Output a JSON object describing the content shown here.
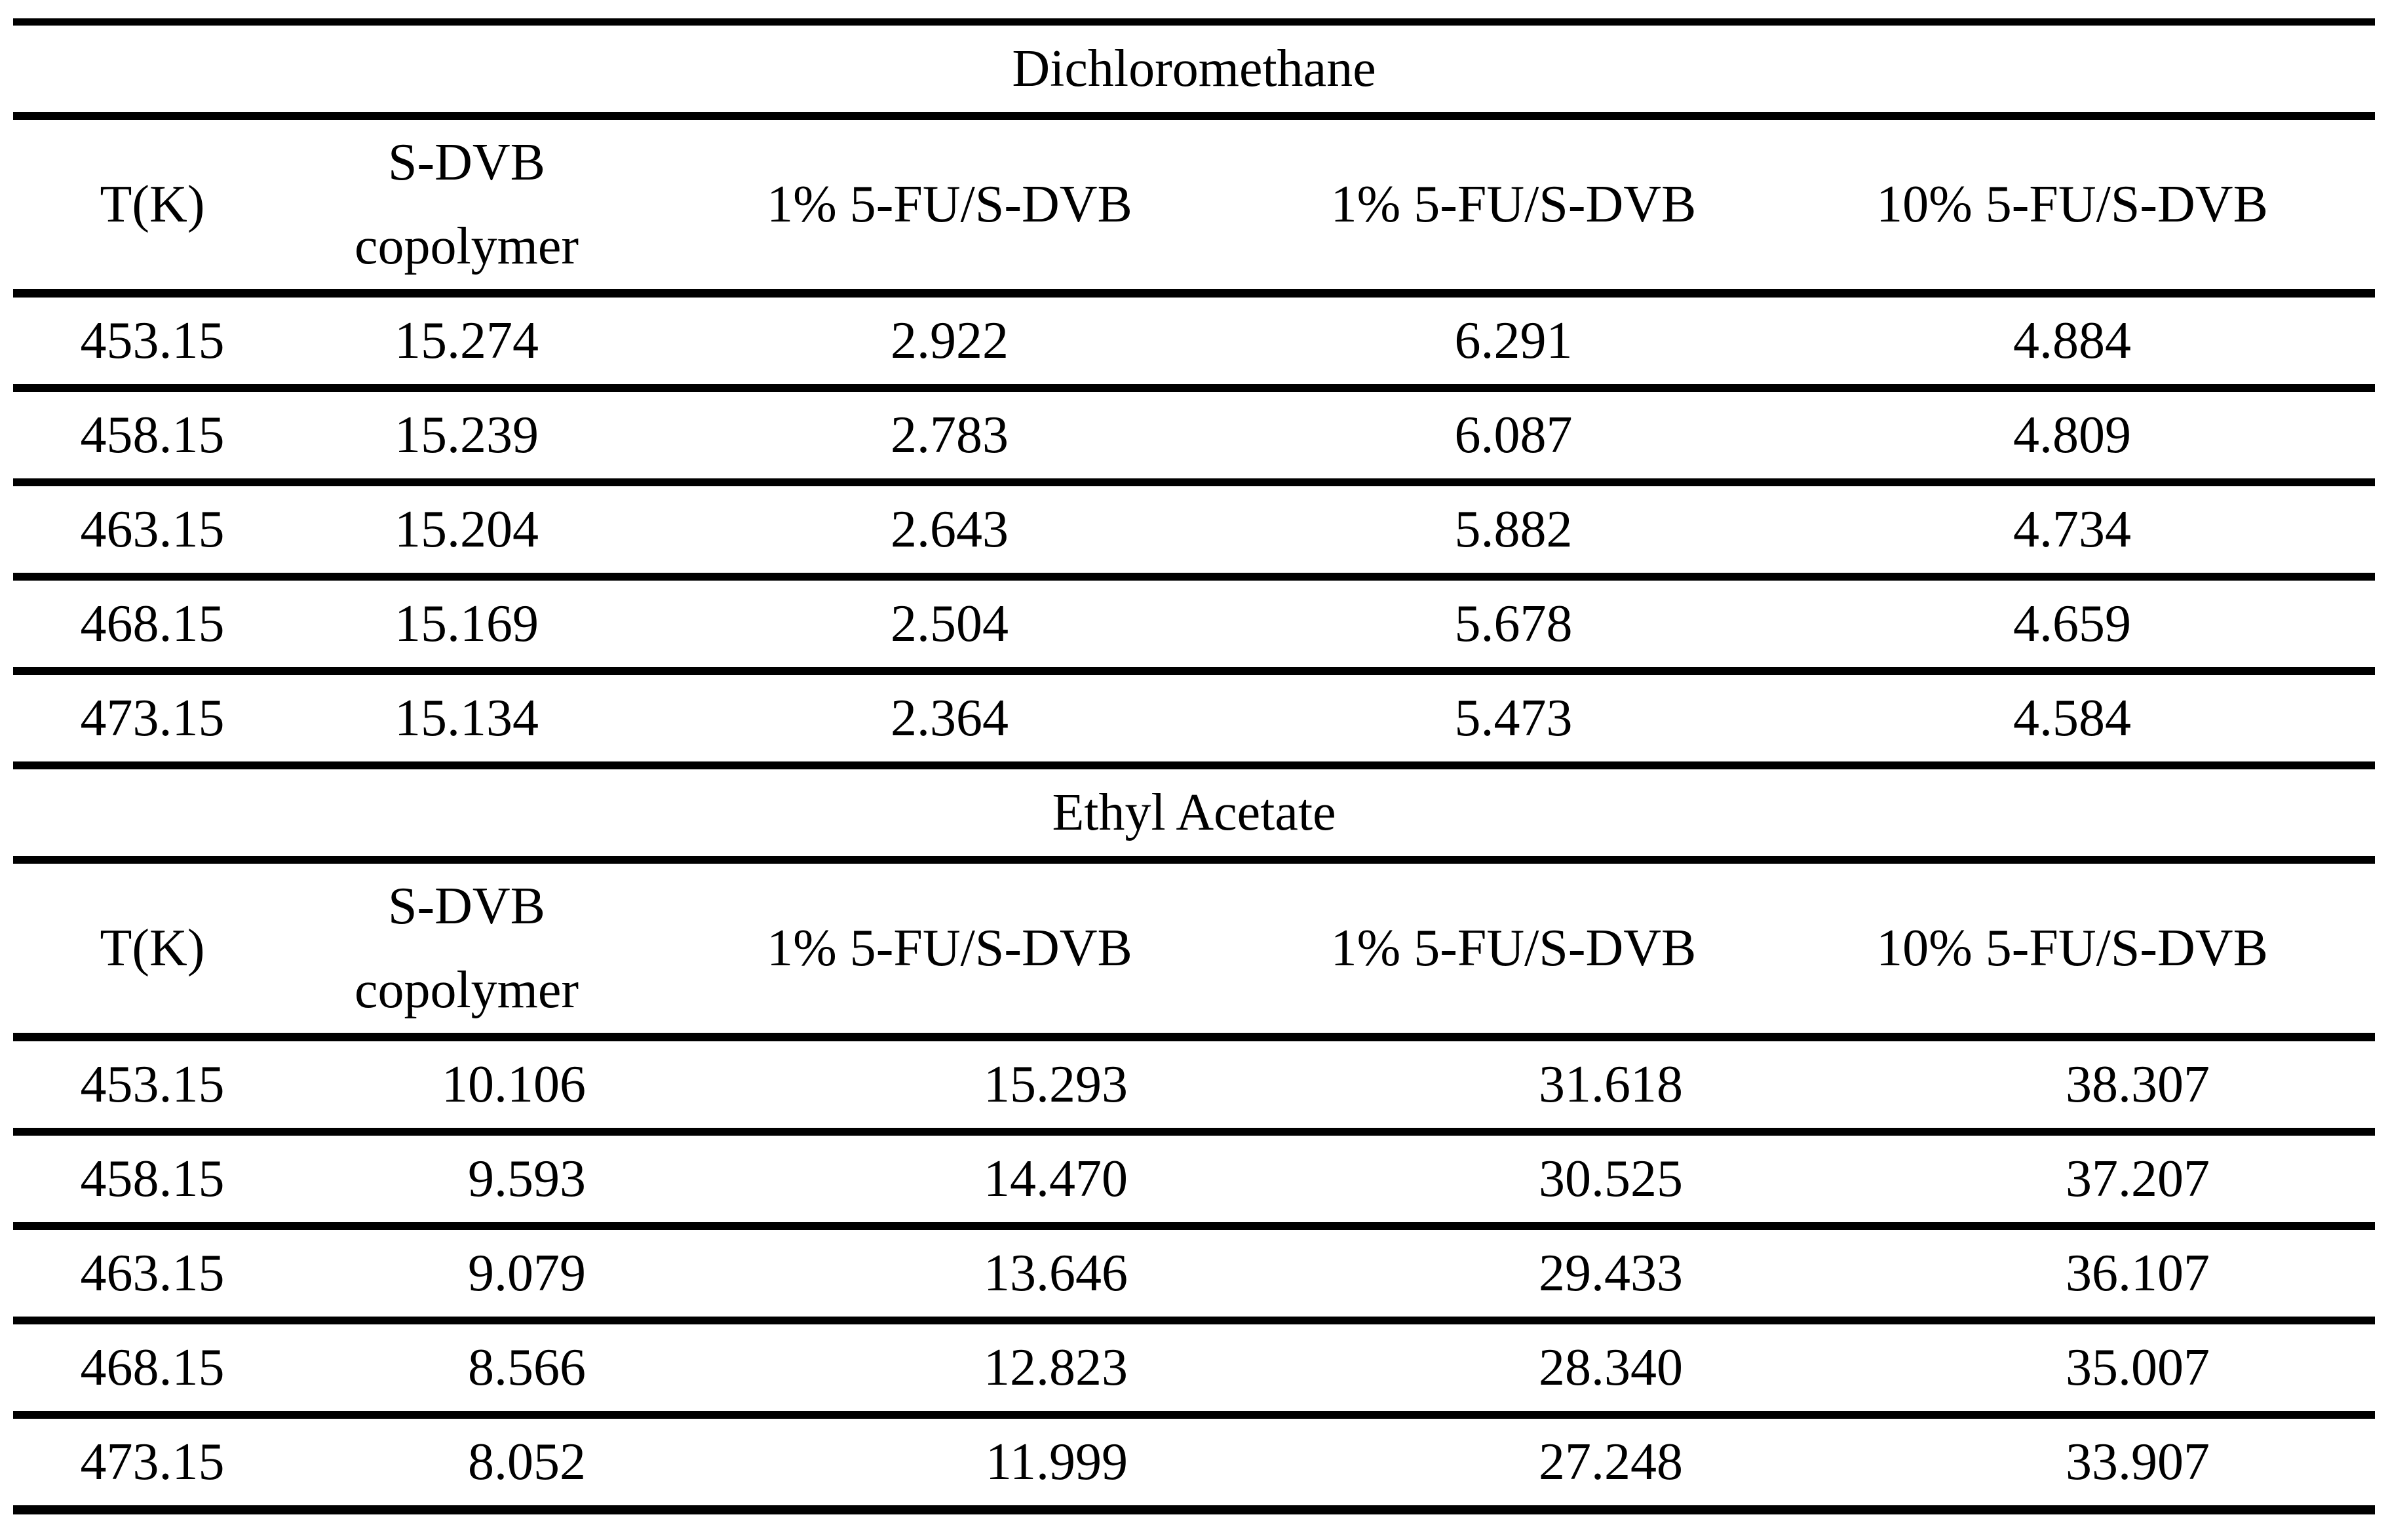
{
  "table": {
    "sections": [
      {
        "title": "Dichloromethane",
        "columns": [
          {
            "label": "T(K)"
          },
          {
            "line1": "S-DVB",
            "line2": "copolymer"
          },
          {
            "label": "1% 5-FU/S-DVB"
          },
          {
            "label": "1% 5-FU/S-DVB"
          },
          {
            "label": "10% 5-FU/S-DVB"
          }
        ],
        "rows": [
          [
            "453.15",
            "15.274",
            "2.922",
            "6.291",
            "4.884"
          ],
          [
            "458.15",
            "15.239",
            "2.783",
            "6.087",
            "4.809"
          ],
          [
            "463.15",
            "15.204",
            "2.643",
            "5.882",
            "4.734"
          ],
          [
            "468.15",
            "15.169",
            "2.504",
            "5.678",
            "4.659"
          ],
          [
            "473.15",
            "15.134",
            "2.364",
            "5.473",
            "4.584"
          ]
        ]
      },
      {
        "title": "Ethyl Acetate",
        "columns": [
          {
            "label": "T(K)"
          },
          {
            "line1": "S-DVB",
            "line2": "copolymer"
          },
          {
            "label": "1% 5-FU/S-DVB"
          },
          {
            "label": "1% 5-FU/S-DVB"
          },
          {
            "label": "10% 5-FU/S-DVB"
          }
        ],
        "rows": [
          [
            "453.15",
            "10.106",
            "15.293",
            "31.618",
            "38.307"
          ],
          [
            "458.15",
            "9.593",
            "14.470",
            "30.525",
            "37.207"
          ],
          [
            "463.15",
            "9.079",
            "13.646",
            "29.433",
            "36.107"
          ],
          [
            "468.15",
            "8.566",
            "12.823",
            "28.340",
            "35.007"
          ],
          [
            "473.15",
            "8.052",
            "11.999",
            "27.248",
            "33.907"
          ]
        ]
      }
    ]
  }
}
